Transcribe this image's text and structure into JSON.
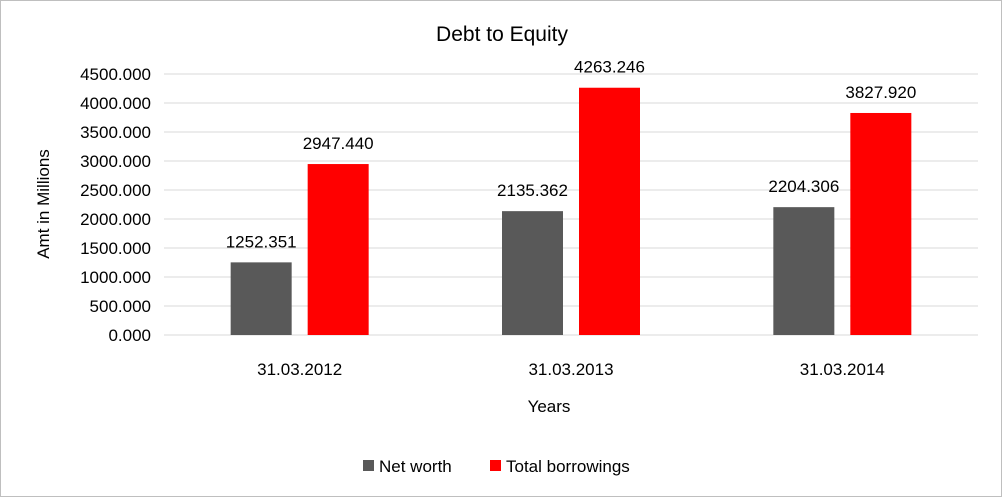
{
  "chart_data": {
    "type": "bar",
    "title": "Debt to Equity",
    "xlabel": "Years",
    "ylabel": "Amt in Millions",
    "categories": [
      "31.03.2012",
      "31.03.2013",
      "31.03.2014"
    ],
    "series": [
      {
        "name": "Net worth",
        "values": [
          1252.351,
          2135.362,
          2204.306
        ],
        "value_labels": [
          "1252.351",
          "2135.362",
          "2204.306"
        ],
        "color": "#595959"
      },
      {
        "name": "Total borrowings",
        "values": [
          2947.44,
          4263.246,
          3827.92
        ],
        "value_labels": [
          "2947.440",
          "4263.246",
          "3827.920"
        ],
        "color": "#ff0000"
      }
    ],
    "ylim": [
      0,
      4500
    ],
    "yticks": [
      "0.000",
      "500.000",
      "1000.000",
      "1500.000",
      "2000.000",
      "2500.000",
      "3000.000",
      "3500.000",
      "4000.000",
      "4500.000"
    ],
    "grid": true,
    "legend_position": "bottom"
  }
}
